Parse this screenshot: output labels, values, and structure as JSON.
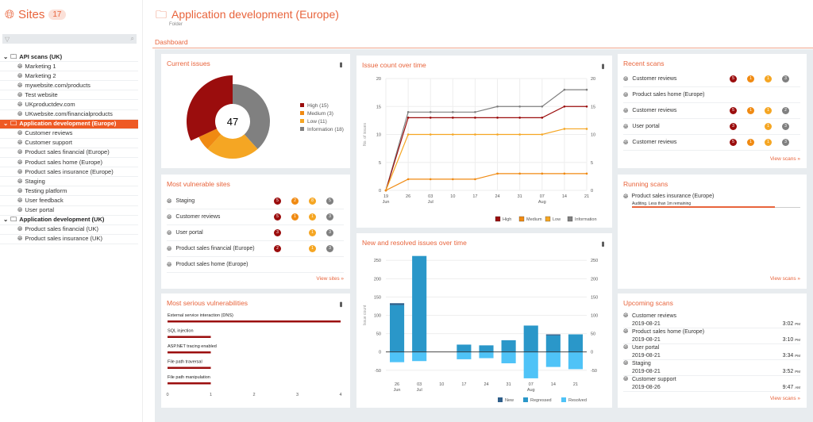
{
  "colors": {
    "accent": "#e8643c",
    "high": "#9b0d0d",
    "medium": "#f08a12",
    "low": "#f5a623",
    "info": "#808080",
    "new": "#2f5f8a",
    "regressed": "#2a97c9",
    "resolved": "#4fc3f7"
  },
  "sidebar": {
    "title": "Sites",
    "count": "17",
    "filter_icon": "filter-icon",
    "search_icon": "search-icon",
    "tree": [
      {
        "label": "API scans (UK)",
        "type": "folder"
      },
      {
        "label": "Marketing 1",
        "type": "site"
      },
      {
        "label": "Marketing 2",
        "type": "site"
      },
      {
        "label": "mywebsite.com/products",
        "type": "site"
      },
      {
        "label": "Test website",
        "type": "site"
      },
      {
        "label": "UKproductdev.com",
        "type": "site"
      },
      {
        "label": "UKwebsite.com/financialproducts",
        "type": "site"
      },
      {
        "label": "Application development (Europe)",
        "type": "folder",
        "selected": true
      },
      {
        "label": "Customer reviews",
        "type": "site"
      },
      {
        "label": "Customer support",
        "type": "site"
      },
      {
        "label": "Product sales financial (Europe)",
        "type": "site"
      },
      {
        "label": "Product sales home (Europe)",
        "type": "site"
      },
      {
        "label": "Product sales insurance (Europe)",
        "type": "site"
      },
      {
        "label": "Staging",
        "type": "site"
      },
      {
        "label": "Testing platform",
        "type": "site"
      },
      {
        "label": "User feedback",
        "type": "site"
      },
      {
        "label": "User portal",
        "type": "site"
      },
      {
        "label": "Application development (UK)",
        "type": "folder"
      },
      {
        "label": "Product sales financial (UK)",
        "type": "site"
      },
      {
        "label": "Product sales insurance (UK)",
        "type": "site"
      }
    ]
  },
  "header": {
    "title": "Application development (Europe)",
    "subtitle": "Folder",
    "tab": "Dashboard"
  },
  "current_issues": {
    "title": "Current issues",
    "total": "47",
    "legend": [
      "High (15)",
      "Medium (3)",
      "Low (11)",
      "Information (18)"
    ]
  },
  "most_vulnerable": {
    "title": "Most vulnerable sites",
    "link": "View sites »",
    "rows": [
      {
        "name": "Staging",
        "counts": [
          "5",
          "2",
          "8",
          "5"
        ]
      },
      {
        "name": "Customer reviews",
        "counts": [
          "5",
          "1",
          "1",
          "3"
        ]
      },
      {
        "name": "User portal",
        "counts": [
          "3",
          "",
          "1",
          "3"
        ]
      },
      {
        "name": "Product sales financial (Europe)",
        "counts": [
          "2",
          "",
          "1",
          "3"
        ]
      },
      {
        "name": "Product sales home (Europe)",
        "counts": [
          "",
          "",
          "",
          ""
        ]
      }
    ]
  },
  "most_serious": {
    "title": "Most serious vulnerabilities"
  },
  "recent_scans": {
    "title": "Recent scans",
    "link": "View scans »",
    "rows": [
      {
        "name": "Customer reviews",
        "counts": [
          "5",
          "1",
          "1",
          "3"
        ]
      },
      {
        "name": "Product sales home (Europe)",
        "counts": [
          "",
          "",
          "",
          ""
        ]
      },
      {
        "name": "Customer reviews",
        "counts": [
          "5",
          "1",
          "1",
          "2"
        ]
      },
      {
        "name": "User portal",
        "counts": [
          "3",
          "",
          "1",
          "3"
        ]
      },
      {
        "name": "Customer reviews",
        "counts": [
          "5",
          "1",
          "1",
          "3"
        ]
      }
    ]
  },
  "running_scans": {
    "title": "Running scans",
    "link": "View scans »",
    "item": {
      "name": "Product sales insurance (Europe)",
      "status": "Auditing. Less than 1m remaining",
      "progress": 0.85
    }
  },
  "upcoming_scans": {
    "title": "Upcoming scans",
    "link": "View scans »",
    "rows": [
      {
        "name": "Customer reviews",
        "date": "2019-08-21",
        "time": "3:02",
        "ampm": "PM"
      },
      {
        "name": "Product sales home (Europe)",
        "date": "2019-08-21",
        "time": "3:10",
        "ampm": "PM"
      },
      {
        "name": "User portal",
        "date": "2019-08-21",
        "time": "3:34",
        "ampm": "PM"
      },
      {
        "name": "Staging",
        "date": "2019-08-21",
        "time": "3:52",
        "ampm": "PM"
      },
      {
        "name": "Customer support",
        "date": "2019-08-26",
        "time": "9:47",
        "ampm": "AM"
      }
    ]
  },
  "chart_data": [
    {
      "type": "pie",
      "title": "Current issues",
      "categories": [
        "High",
        "Medium",
        "Low",
        "Information"
      ],
      "values": [
        15,
        3,
        11,
        18
      ],
      "center_label": "47",
      "legend": "right"
    },
    {
      "type": "line",
      "title": "Issue count over time",
      "ylabel": "No. of issues",
      "ylim": [
        0,
        20
      ],
      "yticks": [
        0,
        5,
        10,
        15,
        20
      ],
      "x": [
        "19 Jun",
        "26",
        "03 Jul",
        "10",
        "17",
        "24",
        "31",
        "07 Aug",
        "14",
        "21"
      ],
      "series": [
        {
          "name": "High",
          "values": [
            0,
            13,
            13,
            13,
            13,
            13,
            13,
            13,
            15,
            15
          ]
        },
        {
          "name": "Medium",
          "values": [
            0,
            2,
            2,
            2,
            2,
            3,
            3,
            3,
            3,
            3
          ]
        },
        {
          "name": "Low",
          "values": [
            0,
            10,
            10,
            10,
            10,
            10,
            10,
            10,
            11,
            11
          ]
        },
        {
          "name": "Information",
          "values": [
            0,
            14,
            14,
            14,
            14,
            15,
            15,
            15,
            18,
            18
          ]
        }
      ],
      "grid": true,
      "legend": "bottom-right"
    },
    {
      "type": "bar",
      "title": "New and resolved issues over time",
      "ylabel": "Issue count",
      "ylim": [
        -70,
        270
      ],
      "yticks": [
        -50,
        0,
        50,
        100,
        150,
        200,
        250
      ],
      "categories": [
        "26 Jun",
        "03 Jul",
        "10",
        "17",
        "24",
        "31",
        "07 Aug",
        "14",
        "21"
      ],
      "series": [
        {
          "name": "New",
          "values": [
            5,
            0,
            0,
            0,
            0,
            0,
            0,
            3,
            0
          ]
        },
        {
          "name": "Regressed",
          "values": [
            128,
            262,
            0,
            20,
            18,
            32,
            72,
            45,
            48
          ]
        },
        {
          "name": "Resolved",
          "values": [
            -28,
            -25,
            0,
            -20,
            -17,
            -31,
            -72,
            -41,
            -47
          ]
        }
      ],
      "legend": "bottom-right"
    },
    {
      "type": "bar",
      "orientation": "horizontal",
      "title": "Most serious vulnerabilities",
      "categories": [
        "External service interaction (DNS)",
        "SQL injection",
        "ASP.NET tracing enabled",
        "File path traversal",
        "File path manipulation"
      ],
      "values": [
        4,
        1,
        1,
        1,
        1
      ],
      "xlim": [
        0,
        4
      ],
      "xticks": [
        0,
        1,
        2,
        3,
        4
      ]
    }
  ]
}
